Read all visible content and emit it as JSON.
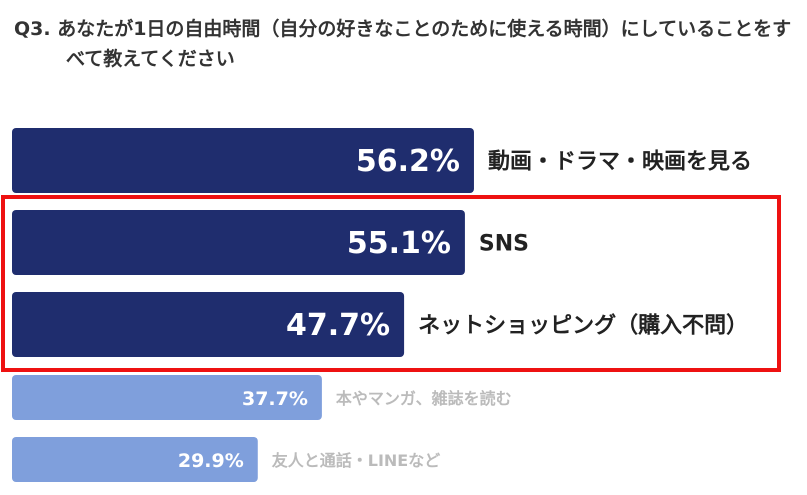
{
  "chart_data": {
    "type": "bar",
    "orientation": "horizontal",
    "title": "Q3. あなたが1日の自由時間（自分の好きなことのために使える時間）にしていることをすべて教えてください",
    "categories": [
      "動画・ドラマ・映画を見る",
      "SNS",
      "ネットショッピング（購入不問）",
      "本やマンガ、雑誌を読む",
      "友人と通話・LINEなど"
    ],
    "values": [
      56.2,
      55.1,
      47.7,
      37.7,
      29.9
    ],
    "value_labels": [
      "56.2%",
      "55.1%",
      "47.7%",
      "37.7%",
      "29.9%"
    ],
    "colors": [
      "#1f2d6e",
      "#1f2d6e",
      "#1f2d6e",
      "#7f9fdc",
      "#7f9fdc"
    ]
  }
}
